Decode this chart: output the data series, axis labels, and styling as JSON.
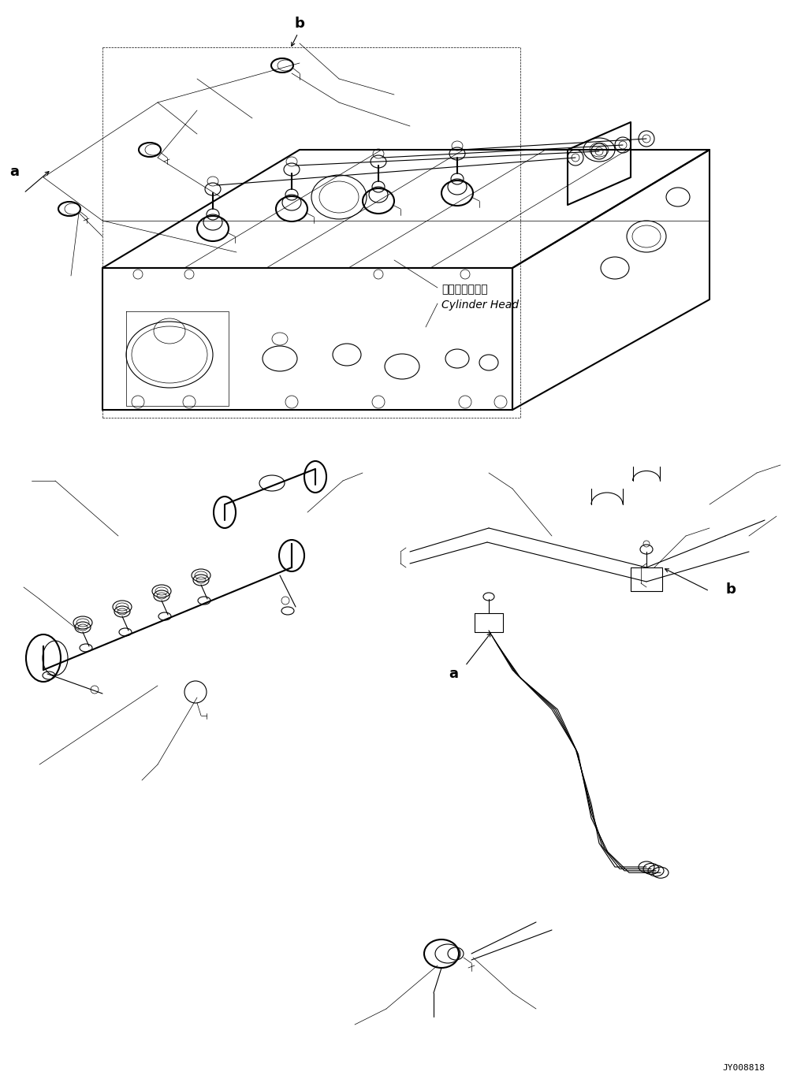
{
  "background_color": "#ffffff",
  "line_color": "#000000",
  "lw": 0.8,
  "lw_thick": 1.5,
  "lw_thin": 0.5,
  "fig_width": 10.3,
  "fig_height": 13.83,
  "dpi": 100,
  "watermark": "JY008818",
  "cyl_head_jp": "シリンダヘッド",
  "cyl_head_en": "Cylinder Head"
}
